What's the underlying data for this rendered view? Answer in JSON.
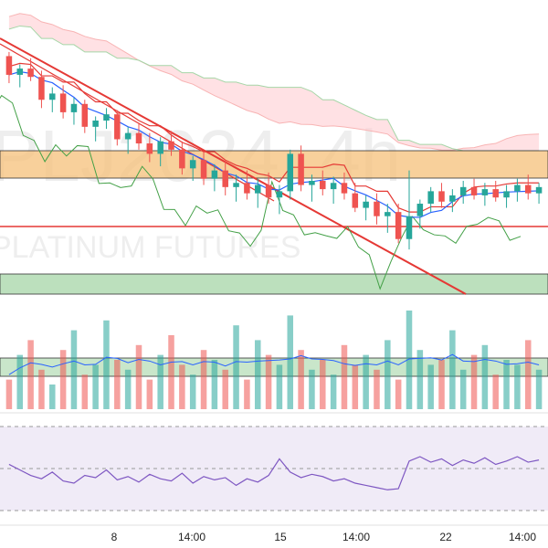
{
  "chart_data": [
    {
      "type": "candlestick",
      "symbol_watermark": "PLJ2024, 4h",
      "subtitle_watermark": "PLATINUM FUTURES",
      "y_trend_line": "descending trendline (red)",
      "horizontal_zones": [
        {
          "name": "resistance",
          "color": "#f6c07a"
        },
        {
          "name": "support",
          "color": "#a5d6a7"
        }
      ],
      "horizontal_line_color": "#e53935",
      "indicators": [
        "Ichimoku cloud",
        "moving average (blue)",
        "lagging span (green)"
      ],
      "candles_ohlc": [
        [
          1045,
          1047,
          1032,
          1036
        ],
        [
          1036,
          1041,
          1030,
          1039
        ],
        [
          1039,
          1044,
          1033,
          1035
        ],
        [
          1035,
          1038,
          1020,
          1024
        ],
        [
          1024,
          1030,
          1018,
          1027
        ],
        [
          1027,
          1031,
          1015,
          1018
        ],
        [
          1018,
          1025,
          1012,
          1022
        ],
        [
          1022,
          1024,
          1008,
          1011
        ],
        [
          1011,
          1016,
          1004,
          1014
        ],
        [
          1014,
          1020,
          1010,
          1017
        ],
        [
          1017,
          1019,
          1002,
          1005
        ],
        [
          1005,
          1011,
          998,
          1008
        ],
        [
          1008,
          1013,
          1000,
          1003
        ],
        [
          1003,
          1008,
          994,
          998
        ],
        [
          998,
          1006,
          992,
          1004
        ],
        [
          1004,
          1009,
          997,
          1000
        ],
        [
          1000,
          1004,
          988,
          991
        ],
        [
          991,
          997,
          985,
          995
        ],
        [
          995,
          999,
          983,
          986
        ],
        [
          986,
          993,
          980,
          990
        ],
        [
          990,
          995,
          978,
          982
        ],
        [
          982,
          988,
          975,
          984
        ],
        [
          984,
          990,
          976,
          979
        ],
        [
          979,
          986,
          972,
          983
        ],
        [
          983,
          989,
          974,
          977
        ],
        [
          977,
          983,
          969,
          980
        ],
        [
          980,
          1000,
          976,
          998
        ],
        [
          998,
          1002,
          980,
          983
        ],
        [
          983,
          988,
          975,
          985
        ],
        [
          985,
          990,
          978,
          981
        ],
        [
          981,
          987,
          974,
          984
        ],
        [
          984,
          989,
          976,
          979
        ],
        [
          979,
          984,
          970,
          972
        ],
        [
          972,
          978,
          966,
          975
        ],
        [
          975,
          979,
          964,
          968
        ],
        [
          968,
          974,
          960,
          970
        ],
        [
          970,
          974,
          955,
          957
        ],
        [
          957,
          990,
          952,
          968
        ],
        [
          968,
          976,
          962,
          974
        ],
        [
          974,
          982,
          970,
          980
        ],
        [
          980,
          984,
          972,
          975
        ],
        [
          975,
          981,
          970,
          978
        ],
        [
          978,
          985,
          974,
          982
        ],
        [
          982,
          986,
          976,
          978
        ],
        [
          978,
          984,
          973,
          981
        ],
        [
          981,
          985,
          975,
          977
        ],
        [
          977,
          983,
          972,
          980
        ],
        [
          980,
          986,
          975,
          983
        ],
        [
          983,
          988,
          976,
          979
        ],
        [
          979,
          984,
          974,
          982
        ]
      ],
      "volume": [
        30,
        55,
        70,
        40,
        25,
        60,
        80,
        35,
        45,
        90,
        50,
        40,
        65,
        30,
        55,
        75,
        45,
        35,
        60,
        50,
        40,
        85,
        30,
        70,
        55,
        45,
        95,
        60,
        40,
        50,
        35,
        65,
        45,
        55,
        40,
        70,
        30,
        100,
        60,
        45,
        50,
        80,
        40,
        55,
        65,
        35,
        50,
        45,
        70,
        40
      ],
      "rsi": [
        55,
        50,
        45,
        42,
        48,
        40,
        38,
        45,
        43,
        50,
        41,
        44,
        39,
        46,
        42,
        40,
        47,
        38,
        44,
        41,
        43,
        36,
        42,
        39,
        45,
        60,
        48,
        43,
        46,
        44,
        40,
        42,
        38,
        36,
        34,
        32,
        33,
        58,
        62,
        57,
        60,
        54,
        59,
        56,
        61,
        55,
        58,
        62,
        57,
        59
      ],
      "x_tick_labels": [
        "8",
        "14:00",
        "15",
        "14:00",
        "22",
        "14:00"
      ],
      "colors": {
        "up": "#26a69a",
        "down": "#ef5350",
        "candle_border_up": "#26a69a",
        "cloud_up": "#c8e6c9",
        "cloud_down": "#ffcdd2",
        "ma": "#2962ff",
        "lagging": "#43a047",
        "rsi_line": "#7e57c2",
        "rsi_band": "#ede7f6",
        "trend": "#e53935",
        "vol_ma": "#2962ff"
      }
    }
  ]
}
